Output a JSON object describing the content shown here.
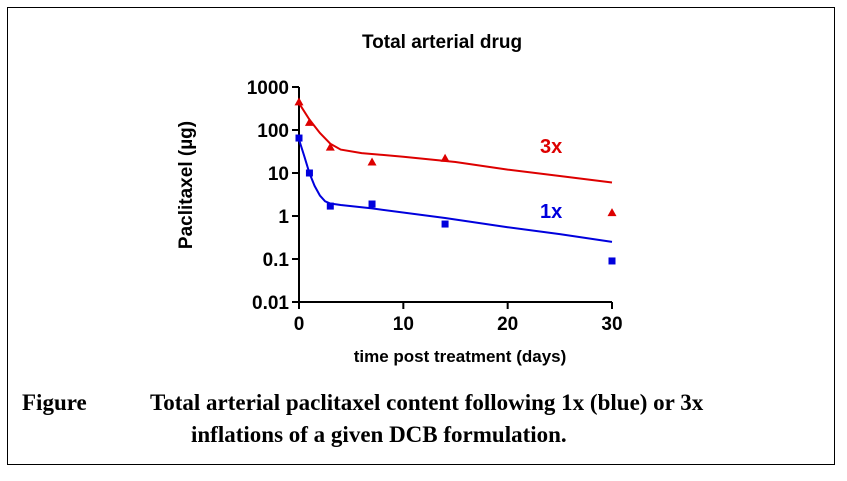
{
  "chart_data": {
    "type": "scatter",
    "title": "Total arterial drug",
    "xlabel": "time post treatment (days)",
    "ylabel": "Paclitaxel (µg)",
    "xscale": "linear",
    "yscale": "log",
    "xlim": [
      0,
      30
    ],
    "ylim": [
      0.01,
      1000
    ],
    "x_ticks": [
      0,
      10,
      20,
      30
    ],
    "y_ticks": [
      0.01,
      0.1,
      1,
      10,
      100,
      1000
    ],
    "x_tick_labels": [
      "0",
      "10",
      "20",
      "30"
    ],
    "y_tick_labels": [
      "0.01",
      "0.1",
      "1",
      "10",
      "100",
      "1000"
    ],
    "grid": false,
    "series": [
      {
        "name": "3x",
        "color": "#dd0000",
        "marker": "triangle",
        "points": [
          [
            0,
            450
          ],
          [
            1,
            150
          ],
          [
            3,
            40
          ],
          [
            7,
            18
          ],
          [
            14,
            22
          ],
          [
            30,
            1.2
          ]
        ],
        "fit": [
          [
            0,
            420
          ],
          [
            1,
            175
          ],
          [
            2,
            85
          ],
          [
            3,
            48
          ],
          [
            4,
            35
          ],
          [
            6,
            29
          ],
          [
            10,
            24
          ],
          [
            15,
            18
          ],
          [
            20,
            12
          ],
          [
            25,
            8.5
          ],
          [
            30,
            6
          ]
        ]
      },
      {
        "name": "1x",
        "color": "#0000dd",
        "marker": "square",
        "points": [
          [
            0,
            65
          ],
          [
            1,
            10
          ],
          [
            3,
            1.7
          ],
          [
            7,
            1.9
          ],
          [
            14,
            0.65
          ],
          [
            30,
            0.09
          ]
        ],
        "fit": [
          [
            0,
            60
          ],
          [
            0.5,
            25
          ],
          [
            1,
            10
          ],
          [
            1.5,
            5
          ],
          [
            2,
            3
          ],
          [
            2.5,
            2.2
          ],
          [
            3,
            1.95
          ],
          [
            4,
            1.8
          ],
          [
            7,
            1.5
          ],
          [
            14,
            0.9
          ],
          [
            20,
            0.55
          ],
          [
            25,
            0.38
          ],
          [
            30,
            0.25
          ]
        ]
      }
    ]
  },
  "caption": {
    "label": "Figure",
    "line1": "Total arterial paclitaxel content following 1x (blue) or 3x",
    "line2": "inflations of a given DCB formulation."
  }
}
